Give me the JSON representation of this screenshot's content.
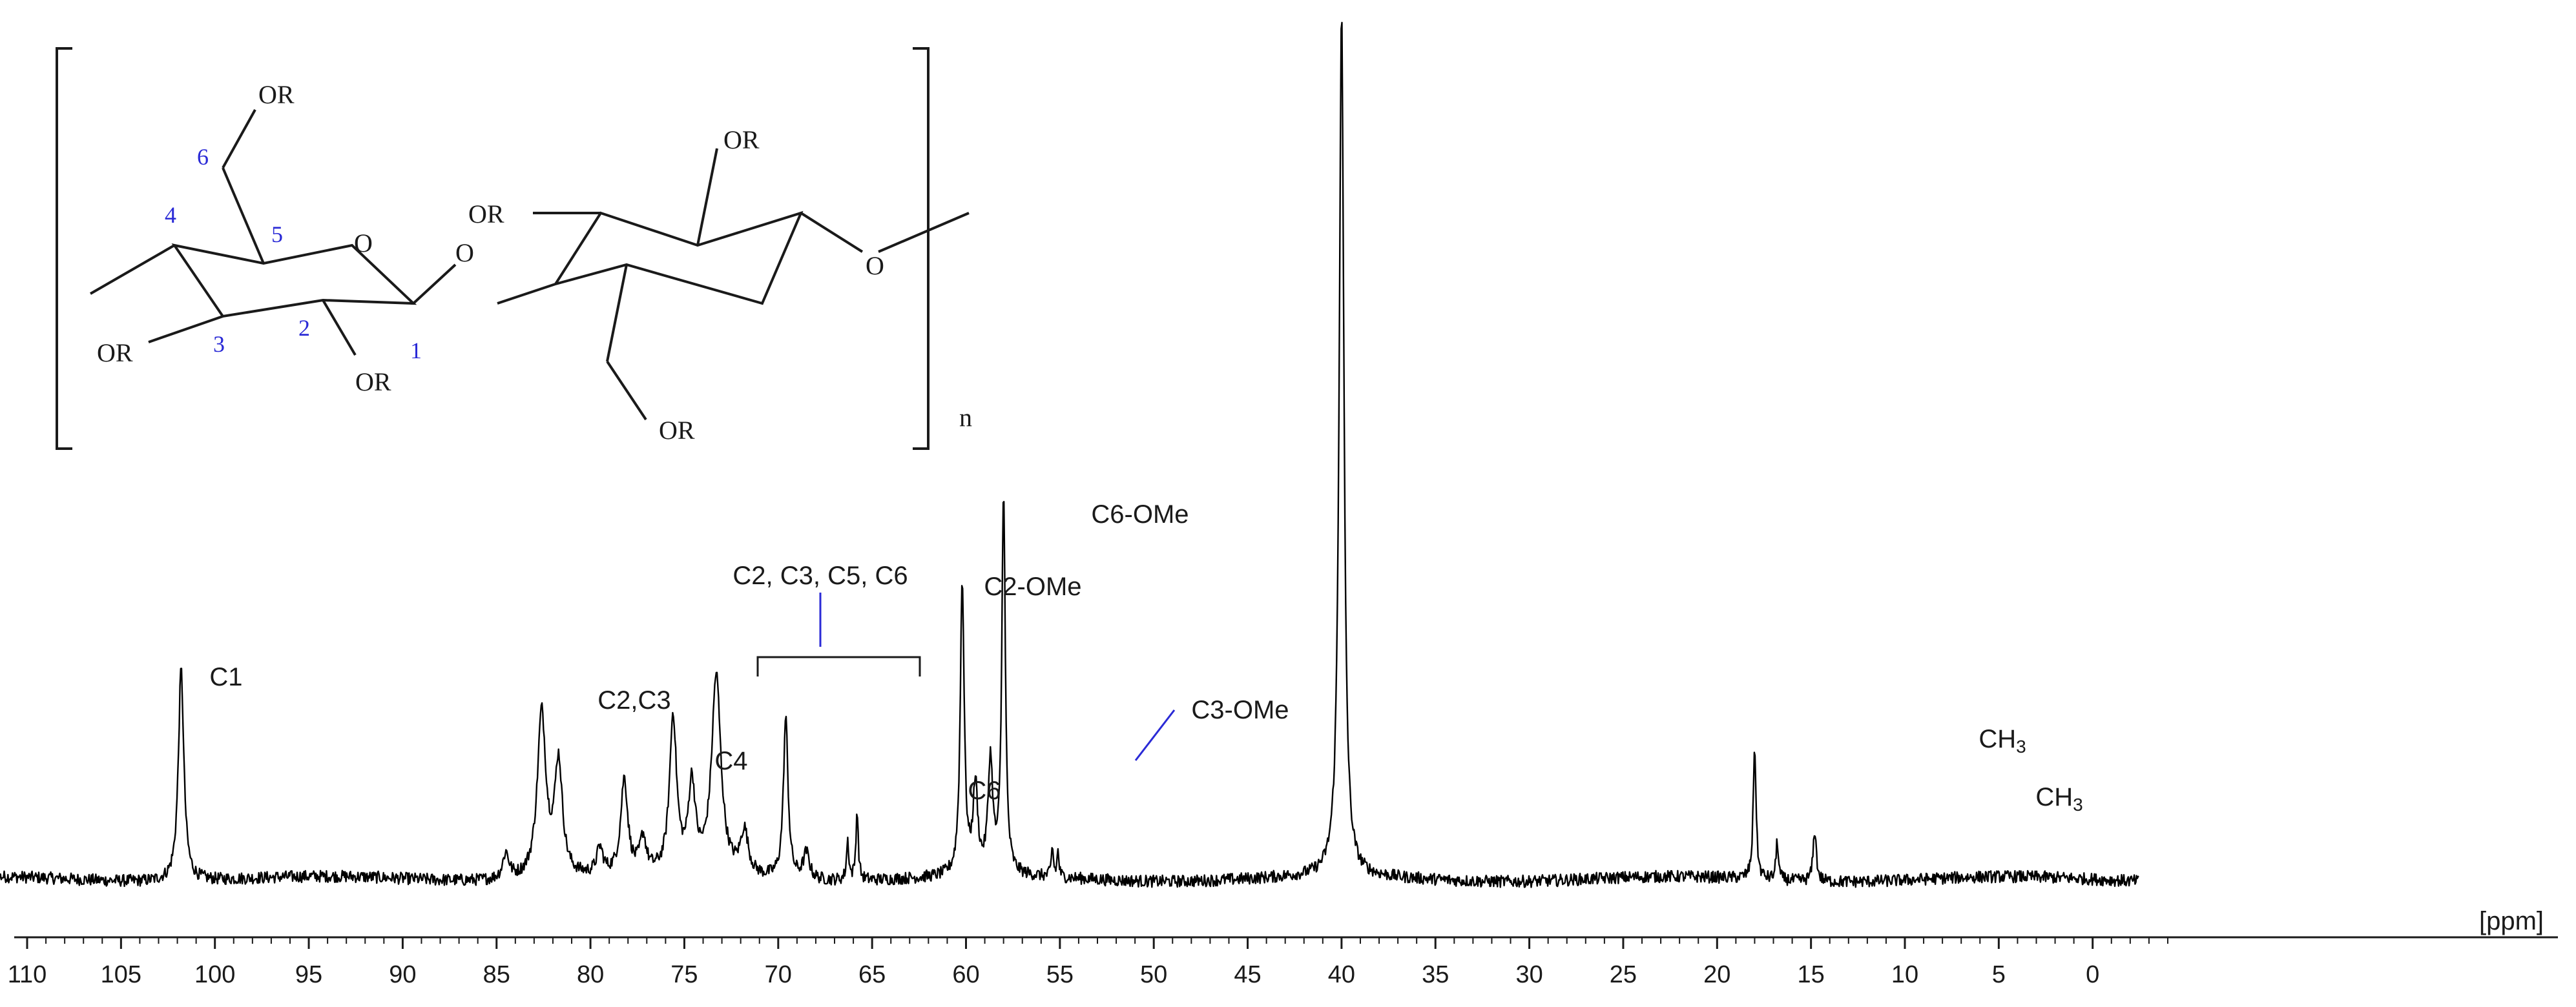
{
  "chart_data": {
    "type": "line",
    "xlabel": "[ppm]",
    "ylabel": "",
    "xlim": [
      114,
      -3
    ],
    "x_reversed": true,
    "ylim": [
      0,
      1
    ],
    "grid": false,
    "tick_labels": [
      "110",
      "105",
      "100",
      "95",
      "90",
      "85",
      "80",
      "75",
      "70",
      "65",
      "60",
      "55",
      "50",
      "45",
      "40",
      "35",
      "30",
      "25",
      "20",
      "15",
      "10",
      "5",
      "0"
    ],
    "tick_values": [
      110,
      105,
      100,
      95,
      90,
      85,
      80,
      75,
      70,
      65,
      60,
      55,
      50,
      45,
      40,
      35,
      30,
      25,
      20,
      15,
      10,
      5,
      0
    ],
    "series": [
      {
        "peaks": [
          {
            "ppm": 101.8,
            "height": 0.245,
            "width": 0.35
          },
          {
            "ppm": 84.5,
            "height": 0.03,
            "width": 0.4
          },
          {
            "ppm": 82.6,
            "height": 0.19,
            "width": 0.55
          },
          {
            "ppm": 81.7,
            "height": 0.13,
            "width": 0.5
          },
          {
            "ppm": 79.5,
            "height": 0.03,
            "width": 0.4
          },
          {
            "ppm": 78.2,
            "height": 0.11,
            "width": 0.45
          },
          {
            "ppm": 77.2,
            "height": 0.04,
            "width": 0.4
          },
          {
            "ppm": 75.6,
            "height": 0.18,
            "width": 0.45
          },
          {
            "ppm": 74.6,
            "height": 0.1,
            "width": 0.45
          },
          {
            "ppm": 73.3,
            "height": 0.23,
            "width": 0.6
          },
          {
            "ppm": 71.8,
            "height": 0.05,
            "width": 0.5
          },
          {
            "ppm": 69.6,
            "height": 0.185,
            "width": 0.3
          },
          {
            "ppm": 68.5,
            "height": 0.03,
            "width": 0.4
          },
          {
            "ppm": 66.3,
            "height": 0.045,
            "width": 0.15
          },
          {
            "ppm": 65.8,
            "height": 0.08,
            "width": 0.15
          },
          {
            "ppm": 60.2,
            "height": 0.34,
            "width": 0.25
          },
          {
            "ppm": 59.5,
            "height": 0.1,
            "width": 0.3
          },
          {
            "ppm": 58.7,
            "height": 0.13,
            "width": 0.3
          },
          {
            "ppm": 58.0,
            "height": 0.445,
            "width": 0.22
          },
          {
            "ppm": 55.4,
            "height": 0.035,
            "width": 0.12
          },
          {
            "ppm": 55.1,
            "height": 0.03,
            "width": 0.12
          },
          {
            "ppm": 40.0,
            "height": 1.0,
            "width": 0.3
          },
          {
            "ppm": 18.0,
            "height": 0.155,
            "width": 0.18
          },
          {
            "ppm": 16.8,
            "height": 0.045,
            "width": 0.15
          },
          {
            "ppm": 14.8,
            "height": 0.06,
            "width": 0.2
          }
        ]
      }
    ],
    "annotations": [
      {
        "text": "C1",
        "ppm": 101.8
      },
      {
        "text": "C2,C3",
        "ppm": 82.7
      },
      {
        "text": "C4",
        "ppm": 78.2
      },
      {
        "text": "C2, C3, C5, C6",
        "ppm_range": [
          77,
          69
        ]
      },
      {
        "text": "C6",
        "ppm": 65.8
      },
      {
        "text": "C2-OMe",
        "ppm": 60.2
      },
      {
        "text": "C6-OMe",
        "ppm": 58.0
      },
      {
        "text": "C3-OMe",
        "ppm": 58.7
      },
      {
        "text": "CH3",
        "ppm": 18.0
      },
      {
        "text": "CH3",
        "ppm": 14.8
      }
    ]
  },
  "structure": {
    "substituent": "OR",
    "ring_oxygen": "O",
    "linkage_oxygen": "O",
    "repeat_subscript": "n",
    "atom_numbers": [
      "1",
      "2",
      "3",
      "4",
      "5",
      "6"
    ]
  },
  "colors": {
    "spectrum": "#000000",
    "annotation_line": "#2a2ad6",
    "atom_number": "#2a2ad6"
  }
}
